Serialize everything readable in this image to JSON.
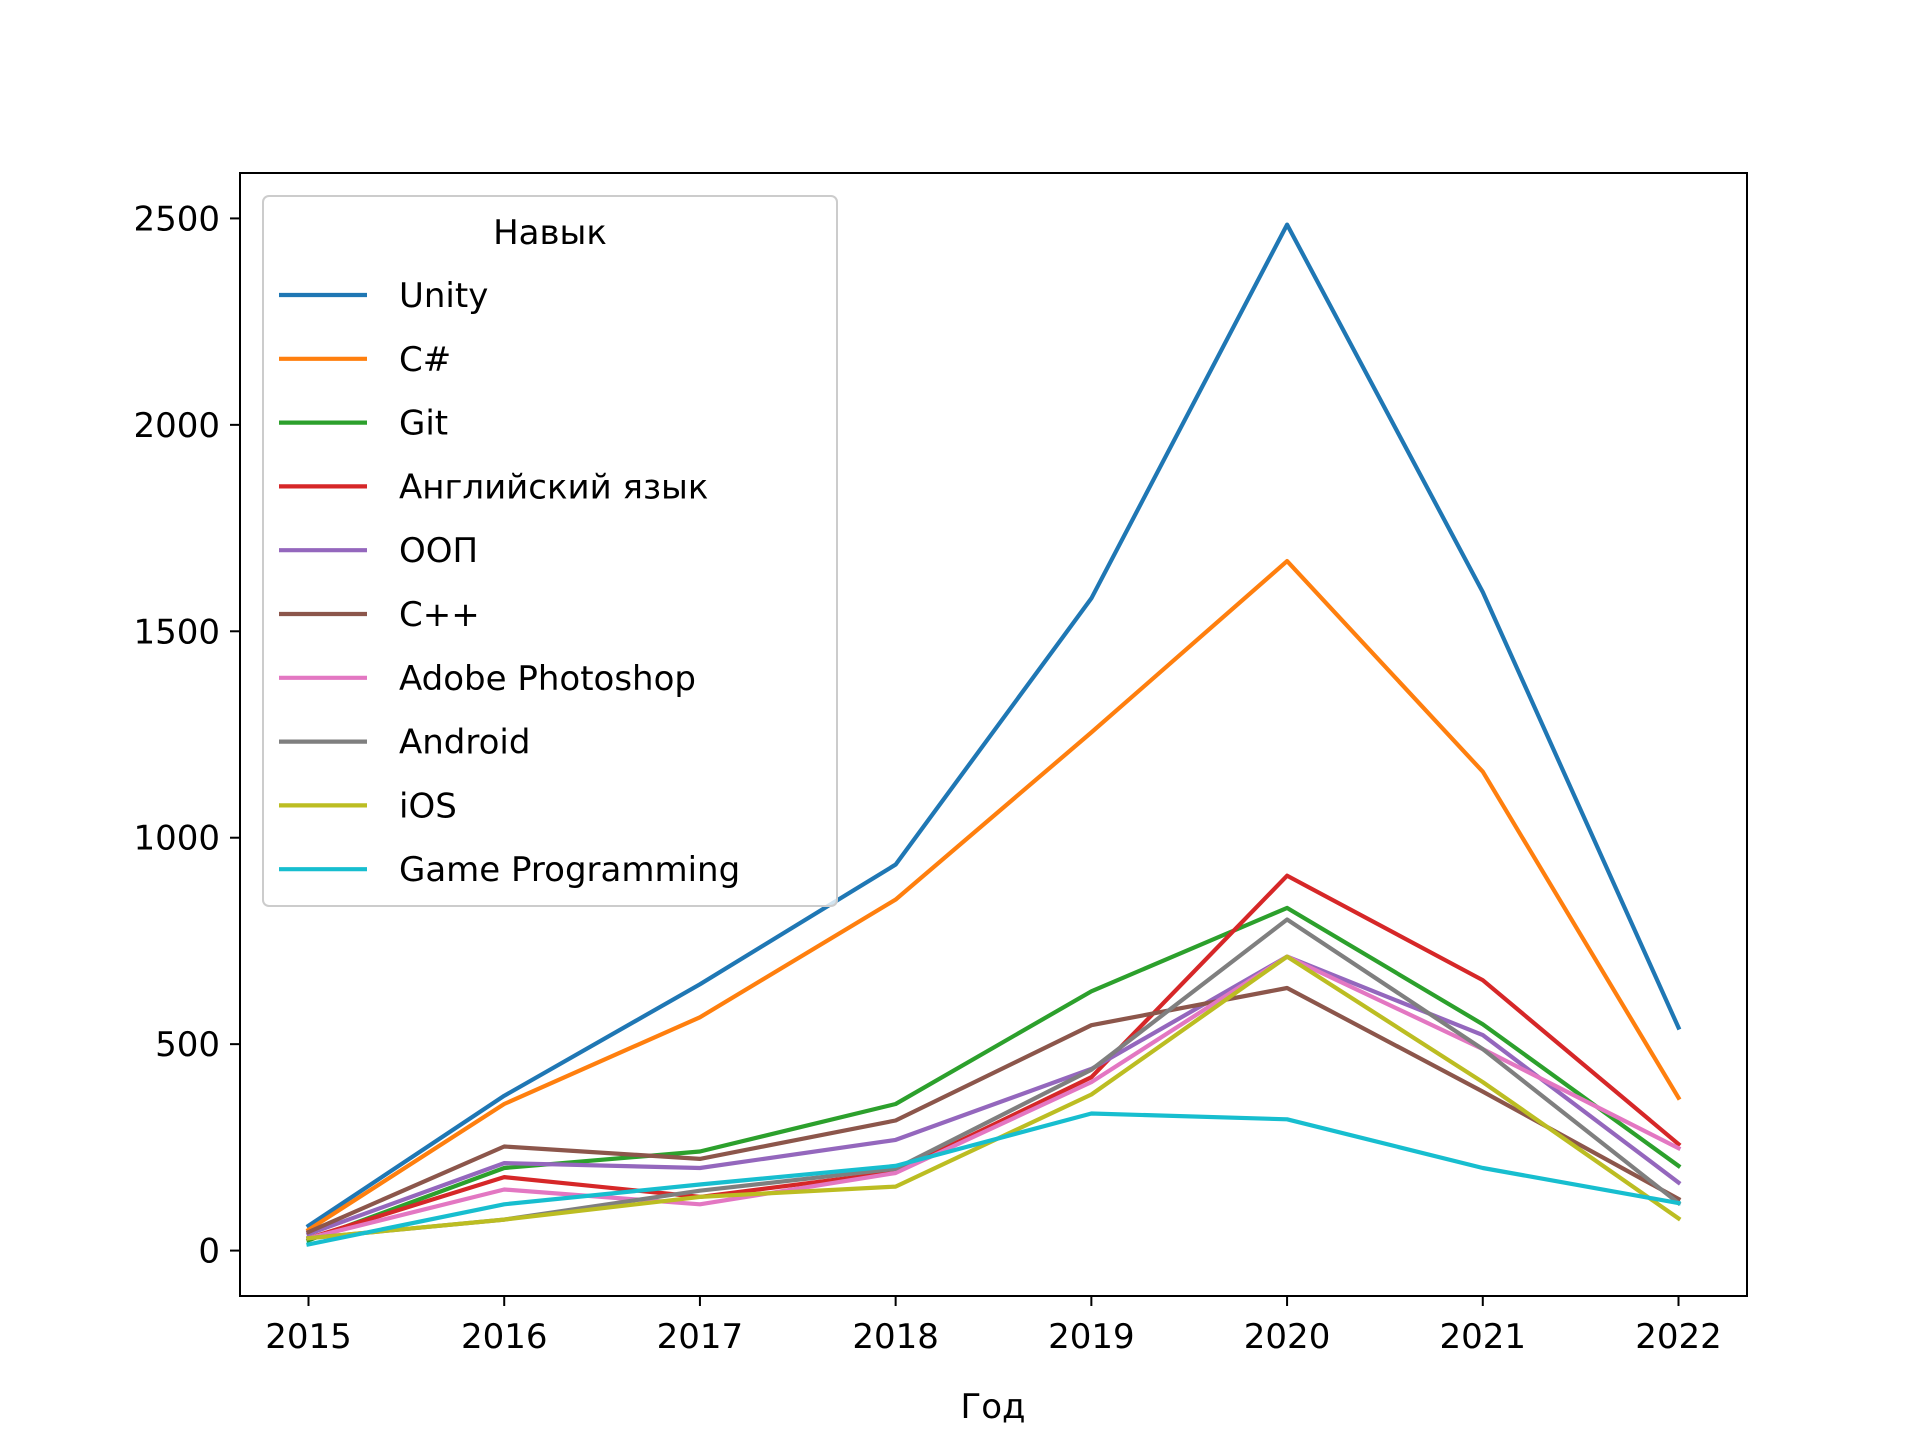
{
  "chart_data": {
    "type": "line",
    "title": "",
    "xlabel": "Год",
    "ylabel": "",
    "x": [
      2015,
      2016,
      2017,
      2018,
      2019,
      2020,
      2021,
      2022
    ],
    "x_ticks": [
      "2015",
      "2016",
      "2017",
      "2018",
      "2019",
      "2020",
      "2021",
      "2022"
    ],
    "y_ticks": [
      "0",
      "500",
      "1000",
      "1500",
      "2000",
      "2500"
    ],
    "ylim": [
      -110,
      2610
    ],
    "xlim": [
      2014.65,
      2022.35
    ],
    "grid": false,
    "legend": {
      "title": "Навык",
      "placement": "upper-left"
    },
    "series": [
      {
        "name": "Unity",
        "color": "#1f77b4",
        "values": [
          60,
          375,
          645,
          935,
          1580,
          2485,
          1595,
          540
        ]
      },
      {
        "name": "C#",
        "color": "#ff7f0e",
        "values": [
          50,
          355,
          565,
          850,
          1255,
          1670,
          1160,
          370
        ]
      },
      {
        "name": "Git",
        "color": "#2ca02c",
        "values": [
          25,
          200,
          240,
          355,
          628,
          830,
          548,
          205
        ]
      },
      {
        "name": "Английский язык",
        "color": "#d62728",
        "values": [
          30,
          178,
          130,
          190,
          420,
          908,
          655,
          258
        ]
      },
      {
        "name": "ООП",
        "color": "#9467bd",
        "values": [
          40,
          212,
          200,
          268,
          440,
          712,
          522,
          165
        ]
      },
      {
        "name": "C++",
        "color": "#8c564b",
        "values": [
          45,
          252,
          222,
          315,
          546,
          636,
          385,
          125
        ]
      },
      {
        "name": "Adobe Photoshop",
        "color": "#e377c2",
        "values": [
          30,
          148,
          112,
          188,
          408,
          712,
          488,
          248
        ]
      },
      {
        "name": "Android",
        "color": "#7f7f7f",
        "values": [
          30,
          75,
          145,
          198,
          438,
          802,
          488,
          115
        ]
      },
      {
        "name": "iOS",
        "color": "#bcbd22",
        "values": [
          30,
          75,
          130,
          155,
          378,
          712,
          408,
          78
        ]
      },
      {
        "name": "Game Programming",
        "color": "#17becf",
        "values": [
          15,
          112,
          160,
          205,
          332,
          318,
          200,
          115
        ]
      }
    ]
  }
}
